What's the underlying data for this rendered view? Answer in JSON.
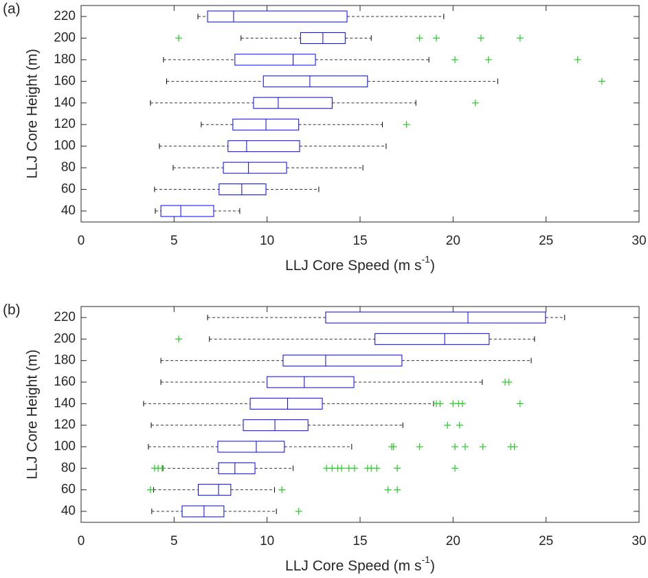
{
  "chart_data": [
    {
      "type": "boxplot",
      "label": "(a)",
      "xlabel": [
        "LLJ Core Speed (m s",
        "-1",
        ")"
      ],
      "ylabel": "LLJ Core Height (m)",
      "xlim": [
        0,
        30
      ],
      "xticks": [
        0,
        5,
        10,
        15,
        20,
        25,
        30
      ],
      "categories": [
        40,
        60,
        80,
        100,
        120,
        140,
        160,
        180,
        200,
        220
      ],
      "box_color": "#0000ff",
      "flier_color": "#33cc33",
      "whisker_color": "#333333",
      "boxes": [
        {
          "whislo": 3.99,
          "q1": 4.29,
          "med": 5.36,
          "q3": 7.13,
          "whishi": 8.53,
          "fliers": []
        },
        {
          "whislo": 3.95,
          "q1": 7.42,
          "med": 8.64,
          "q3": 9.94,
          "whishi": 12.78,
          "fliers": []
        },
        {
          "whislo": 4.95,
          "q1": 7.65,
          "med": 9.0,
          "q3": 11.05,
          "whishi": 15.15,
          "fliers": []
        },
        {
          "whislo": 4.21,
          "q1": 7.9,
          "med": 8.9,
          "q3": 11.75,
          "whishi": 16.4,
          "fliers": []
        },
        {
          "whislo": 6.46,
          "q1": 8.16,
          "med": 9.94,
          "q3": 11.7,
          "whishi": 16.2,
          "fliers": [
            17.5
          ]
        },
        {
          "whislo": 3.73,
          "q1": 9.27,
          "med": 10.6,
          "q3": 13.5,
          "whishi": 18.0,
          "fliers": [
            21.2
          ]
        },
        {
          "whislo": 4.6,
          "q1": 9.8,
          "med": 12.3,
          "q3": 15.4,
          "whishi": 22.4,
          "fliers": [
            28.0
          ]
        },
        {
          "whislo": 4.43,
          "q1": 8.27,
          "med": 11.4,
          "q3": 12.6,
          "whishi": 18.7,
          "fliers": [
            20.1,
            21.9,
            26.7
          ]
        },
        {
          "whislo": 8.6,
          "q1": 11.8,
          "med": 13.0,
          "q3": 14.2,
          "whishi": 15.6,
          "fliers": [
            5.25,
            18.2,
            19.1,
            21.5,
            23.6
          ]
        },
        {
          "whislo": 6.28,
          "q1": 6.8,
          "med": 8.2,
          "q3": 14.3,
          "whishi": 19.5,
          "fliers": []
        }
      ]
    },
    {
      "type": "boxplot",
      "label": "(b)",
      "xlabel": [
        "LLJ Core Speed (m s",
        "-1",
        ")"
      ],
      "ylabel": "LLJ Core Height (m)",
      "xlim": [
        0,
        30
      ],
      "xticks": [
        0,
        5,
        10,
        15,
        20,
        25,
        30
      ],
      "categories": [
        40,
        60,
        80,
        100,
        120,
        140,
        160,
        180,
        200,
        220
      ],
      "box_color": "#0000ff",
      "flier_color": "#33cc33",
      "whisker_color": "#333333",
      "boxes": [
        {
          "whislo": 3.8,
          "q1": 5.43,
          "med": 6.61,
          "q3": 7.68,
          "whishi": 10.5,
          "fliers": [
            11.7
          ]
        },
        {
          "whislo": 3.9,
          "q1": 6.3,
          "med": 7.39,
          "q3": 8.05,
          "whishi": 10.4,
          "fliers": [
            3.73,
            10.8,
            16.5,
            17.0
          ]
        },
        {
          "whislo": 4.4,
          "q1": 7.39,
          "med": 8.27,
          "q3": 9.35,
          "whishi": 11.4,
          "fliers": [
            3.95,
            4.14,
            4.36,
            13.2,
            13.5,
            13.8,
            14.0,
            14.4,
            14.7,
            15.4,
            15.6,
            15.9,
            17.0,
            20.1
          ]
        },
        {
          "whislo": 3.62,
          "q1": 7.35,
          "med": 9.42,
          "q3": 10.93,
          "whishi": 14.55,
          "fliers": [
            16.7,
            16.8,
            18.2,
            20.1,
            20.65,
            21.6,
            23.1,
            23.3
          ]
        },
        {
          "whislo": 3.77,
          "q1": 8.72,
          "med": 10.42,
          "q3": 12.2,
          "whishi": 17.3,
          "fliers": [
            19.7,
            20.35
          ]
        },
        {
          "whislo": 3.36,
          "q1": 9.09,
          "med": 11.1,
          "q3": 12.97,
          "whishi": 18.95,
          "fliers": [
            19.1,
            19.3,
            20.0,
            20.3,
            20.5,
            23.6
          ]
        },
        {
          "whislo": 4.29,
          "q1": 10.0,
          "med": 12.0,
          "q3": 14.67,
          "whishi": 21.57,
          "fliers": [
            22.8,
            23.0
          ]
        },
        {
          "whislo": 4.29,
          "q1": 10.86,
          "med": 13.15,
          "q3": 17.25,
          "whishi": 24.2,
          "fliers": []
        },
        {
          "whislo": 6.9,
          "q1": 15.8,
          "med": 19.55,
          "q3": 21.94,
          "whishi": 24.38,
          "fliers": [
            5.25
          ]
        },
        {
          "whislo": 6.8,
          "q1": 13.15,
          "med": 20.8,
          "q3": 24.97,
          "whishi": 26.0,
          "fliers": []
        }
      ]
    }
  ]
}
